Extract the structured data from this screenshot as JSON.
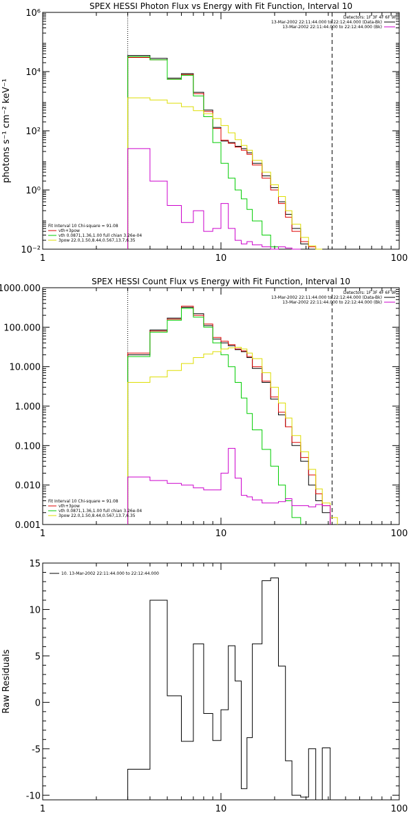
{
  "chart_data": [
    {
      "type": "line",
      "title": "SPEX HESSI Photon Flux vs Energy with Fit Function, Interval 10",
      "ylabel": "photons s⁻¹ cm⁻² keV⁻¹",
      "xscale": "log",
      "yscale": "log",
      "xlim": [
        1,
        100
      ],
      "ylim": [
        0.01,
        1000000
      ],
      "xticks": [
        {
          "v": 1,
          "label": "1"
        },
        {
          "v": 10,
          "label": "10"
        },
        {
          "v": 100,
          "label": "100"
        }
      ],
      "yticks": [
        {
          "v": 0.01,
          "label": "10⁻²"
        },
        {
          "v": 1,
          "label": "10⁰"
        },
        {
          "v": 100,
          "label": "10²"
        },
        {
          "v": 10000,
          "label": "10⁴"
        },
        {
          "v": 1000000,
          "label": "10⁶"
        }
      ],
      "vlines": [
        {
          "x": 3.0,
          "style": "dotted"
        },
        {
          "x": 42.0,
          "style": "dashed"
        }
      ],
      "legend_top": {
        "header": "Detectors: 1F 3F 4F 6F 9F",
        "entries": [
          {
            "label": "13-Mar-2002 22:11:44.000 to 22:12:44.000 (Data-Bk)",
            "color": "#000000"
          },
          {
            "label": "13-Mar-2002 22:11:44.000 to 22:12:44.000 (Bk)",
            "color": "#cc00cc"
          }
        ]
      },
      "legend_bottom": {
        "header": "Fit Interval 10   Chi-square = 91.08",
        "entries": [
          {
            "label": "vth+3pow",
            "color": "#dd0000"
          },
          {
            "label": "vth 0.0871,1.36,1.00  full chian 3.26e-04",
            "color": "#00cc00"
          },
          {
            "label": "3pow 22.0,1.50,8.44,0.567,13.7,6.35",
            "color": "#dddd00"
          }
        ]
      },
      "x_edges": [
        3.0,
        4.0,
        5.0,
        6.0,
        7.0,
        8.0,
        9.0,
        10.0,
        11.0,
        12.0,
        13.0,
        14.0,
        15.0,
        17.0,
        19.0,
        21.0,
        23.0,
        25.0,
        28.0,
        31.0,
        34.0,
        37.0,
        41.0,
        45.0,
        50.0
      ],
      "series": [
        {
          "name": "Data-Bk",
          "color": "#000000",
          "values": [
            35000,
            28000,
            6000,
            8500,
            2000,
            500,
            130,
            45,
            40,
            30,
            25,
            18,
            8,
            3,
            1.2,
            0.4,
            0.15,
            0.05,
            0.015,
            null,
            null,
            null,
            null,
            null
          ]
        },
        {
          "name": "vth+3pow",
          "color": "#dd0000",
          "values": [
            30000,
            25000,
            5500,
            8000,
            1800,
            450,
            120,
            48,
            38,
            28,
            22,
            16,
            7,
            2.5,
            1.0,
            0.35,
            0.12,
            0.04,
            0.018,
            0.012,
            null,
            null,
            null,
            null
          ]
        },
        {
          "name": "vth",
          "color": "#00cc00",
          "values": [
            32000,
            25000,
            5500,
            7500,
            1500,
            300,
            40,
            8,
            2.5,
            1.0,
            0.5,
            0.22,
            0.09,
            0.03,
            0.012,
            null,
            null,
            null,
            null,
            null,
            null,
            null,
            null,
            null
          ]
        },
        {
          "name": "3pow",
          "color": "#dddd00",
          "values": [
            1300,
            1100,
            850,
            650,
            480,
            380,
            260,
            150,
            85,
            50,
            32,
            22,
            10,
            4,
            1.5,
            0.6,
            0.2,
            0.07,
            0.025,
            0.013,
            0.009,
            null,
            null,
            null
          ]
        },
        {
          "name": "Bk",
          "color": "#cc00cc",
          "values": [
            25,
            2,
            0.3,
            0.08,
            0.2,
            0.04,
            0.05,
            0.35,
            0.05,
            0.02,
            0.015,
            0.018,
            0.014,
            0.012,
            0.01,
            0.012,
            0.011,
            0.01,
            null,
            null,
            null,
            null,
            null,
            null
          ]
        }
      ]
    },
    {
      "type": "line",
      "title": "SPEX HESSI Count Flux vs Energy with Fit Function, Interval 10",
      "ylabel": "",
      "xscale": "log",
      "yscale": "log",
      "xlim": [
        1,
        100
      ],
      "ylim": [
        0.001,
        1000
      ],
      "xticks": [
        {
          "v": 1,
          "label": "1"
        },
        {
          "v": 10,
          "label": "10"
        },
        {
          "v": 100,
          "label": "100"
        }
      ],
      "yticks": [
        {
          "v": 0.001,
          "label": "0.001"
        },
        {
          "v": 0.01,
          "label": "0.010"
        },
        {
          "v": 0.1,
          "label": "0.100"
        },
        {
          "v": 1,
          "label": "1.000"
        },
        {
          "v": 10,
          "label": "10.000"
        },
        {
          "v": 100,
          "label": "100.000"
        },
        {
          "v": 1000,
          "label": "1000.000"
        }
      ],
      "vlines": [
        {
          "x": 3.0,
          "style": "dotted"
        },
        {
          "x": 42.0,
          "style": "dashed"
        }
      ],
      "legend_top": {
        "header": "Detectors: 1F 3F 4F 6F 9F",
        "entries": [
          {
            "label": "13-Mar-2002 22:11:44.000 to 22:12:44.000 (Data-Bk)",
            "color": "#000000"
          },
          {
            "label": "13-Mar-2002 22:11:44.000 to 22:12:44.000 (Bk)",
            "color": "#cc00cc"
          }
        ]
      },
      "legend_bottom": {
        "header": "Fit Interval 10   Chi-square = 91.08",
        "entries": [
          {
            "label": "vth+3pow",
            "color": "#dd0000"
          },
          {
            "label": "vth 0.0871,1.36,1.00  full chian 3.26e-04",
            "color": "#00cc00"
          },
          {
            "label": "3pow 22.0,1.50,8.44,0.567,13.7,6.35",
            "color": "#dddd00"
          }
        ]
      },
      "x_edges": [
        3.0,
        4.0,
        5.0,
        6.0,
        7.0,
        8.0,
        9.0,
        10.0,
        11.0,
        12.0,
        13.0,
        14.0,
        15.0,
        17.0,
        19.0,
        21.0,
        23.0,
        25.0,
        28.0,
        31.0,
        34.0,
        37.0,
        41.0,
        45.0,
        50.0
      ],
      "series": [
        {
          "name": "Data-Bk",
          "color": "#000000",
          "values": [
            20,
            85,
            170,
            320,
            220,
            110,
            50,
            40,
            34,
            27,
            24,
            17,
            9,
            4,
            1.5,
            0.6,
            0.3,
            0.1,
            0.04,
            0.01,
            0.004,
            0.002,
            null,
            null
          ]
        },
        {
          "name": "vth+3pow",
          "color": "#dd0000",
          "values": [
            22,
            80,
            160,
            340,
            200,
            120,
            55,
            44,
            36,
            28,
            25,
            18,
            10,
            4.3,
            1.7,
            0.7,
            0.3,
            0.12,
            0.05,
            0.018,
            0.006,
            0.003,
            null,
            null
          ]
        },
        {
          "name": "vth",
          "color": "#00cc00",
          "values": [
            18,
            75,
            150,
            300,
            180,
            100,
            40,
            20,
            10,
            4,
            1.6,
            0.65,
            0.25,
            0.08,
            0.03,
            0.01,
            0.004,
            0.0015,
            null,
            null,
            null,
            null,
            null,
            null
          ]
        },
        {
          "name": "3pow",
          "color": "#dddd00",
          "values": [
            4,
            5.5,
            8,
            12,
            17,
            21,
            24,
            28,
            30,
            31,
            28,
            22,
            16,
            7,
            3,
            1.2,
            0.5,
            0.18,
            0.07,
            0.025,
            0.008,
            0.0035,
            0.0015,
            null
          ]
        },
        {
          "name": "Bk",
          "color": "#cc00cc",
          "values": [
            0.016,
            0.013,
            0.011,
            0.01,
            0.0085,
            0.0075,
            0.0075,
            0.02,
            0.085,
            0.015,
            0.0055,
            0.005,
            0.0042,
            0.0035,
            0.0035,
            0.0038,
            0.0045,
            0.003,
            0.003,
            0.0028,
            0.0032,
            0.003,
            null,
            null
          ]
        }
      ]
    },
    {
      "type": "line",
      "title": "",
      "ylabel": "Raw Residuals",
      "xscale": "log",
      "yscale": "linear",
      "xlim": [
        1,
        100
      ],
      "ylim": [
        -10.5,
        15
      ],
      "xticks": [
        {
          "v": 1,
          "label": "1"
        },
        {
          "v": 10,
          "label": "10"
        },
        {
          "v": 100,
          "label": "100"
        }
      ],
      "yticks": [
        {
          "v": -10,
          "label": "-10"
        },
        {
          "v": -5,
          "label": "-5"
        },
        {
          "v": 0,
          "label": "0"
        },
        {
          "v": 5,
          "label": "5"
        },
        {
          "v": 10,
          "label": "10"
        },
        {
          "v": 15,
          "label": "15"
        }
      ],
      "legend_top": {
        "header": "",
        "entries": [
          {
            "label": "10. 13-Mar-2002 22:11:44.000 to 22:12:44.000",
            "color": "#000000"
          }
        ]
      },
      "x_edges": [
        3.0,
        4.0,
        5.0,
        6.0,
        7.0,
        8.0,
        9.0,
        10.0,
        11.0,
        12.0,
        13.0,
        14.0,
        15.0,
        17.0,
        19.0,
        21.0,
        23.0,
        25.0,
        28.0,
        31.0,
        34.0,
        37.0,
        41.0
      ],
      "series": [
        {
          "name": "residuals",
          "color": "#000000",
          "values": [
            -7.2,
            11.0,
            0.7,
            -4.2,
            6.3,
            -1.2,
            -4.1,
            -0.8,
            6.1,
            2.3,
            -9.3,
            -3.8,
            6.3,
            13.1,
            13.4,
            3.9,
            -6.3,
            -10.0,
            -10.2,
            -5.0,
            -10.5,
            -4.9
          ]
        }
      ]
    }
  ]
}
